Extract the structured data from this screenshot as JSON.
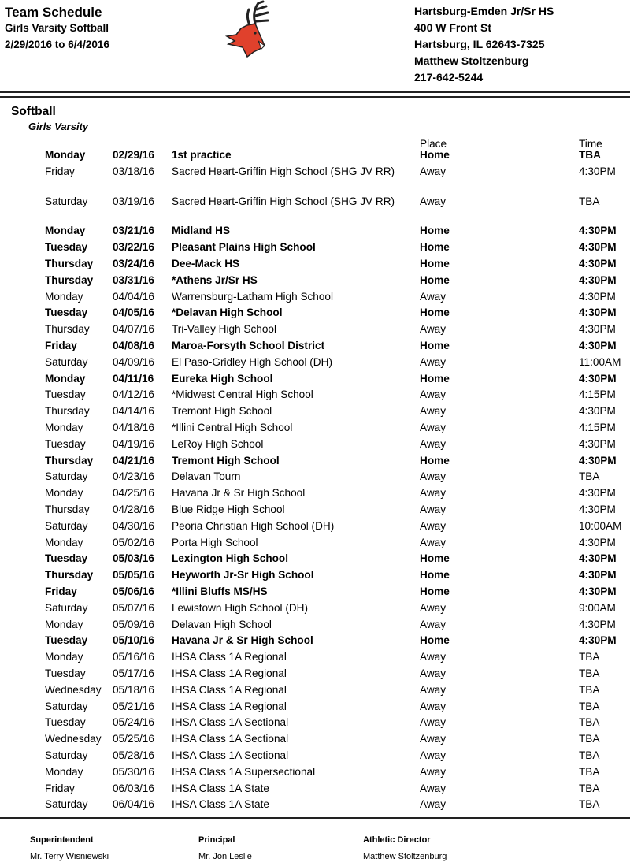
{
  "header": {
    "title": "Team Schedule",
    "subtitle": "Girls Varsity Softball",
    "date_range": "2/29/2016 to 6/4/2016",
    "school": "Hartsburg-Emden Jr/Sr HS",
    "address1": "400 W Front St",
    "address2": "Hartsburg, IL  62643-7325",
    "contact": "Matthew Stoltzenburg",
    "phone": "217-642-5244"
  },
  "colors": {
    "logo_red": "#e0412c"
  },
  "section": {
    "sport": "Softball",
    "level": "Girls Varsity",
    "place_header": "Place",
    "time_header": "Time"
  },
  "games": [
    {
      "day": "Monday",
      "date": "02/29/16",
      "opponent": "1st practice",
      "place": "Home",
      "time": "TBA"
    },
    {
      "day": "Friday",
      "date": "03/18/16",
      "opponent": "Sacred Heart-Griffin High School (SHG JV RR)",
      "place": "Away",
      "time": "4:30PM"
    },
    {
      "day": "Saturday",
      "date": "03/19/16",
      "opponent": "Sacred Heart-Griffin High School (SHG JV RR)",
      "place": "Away",
      "time": "TBA"
    },
    {
      "day": "Monday",
      "date": "03/21/16",
      "opponent": "Midland HS",
      "place": "Home",
      "time": "4:30PM"
    },
    {
      "day": "Tuesday",
      "date": "03/22/16",
      "opponent": "Pleasant Plains High School",
      "place": "Home",
      "time": "4:30PM"
    },
    {
      "day": "Thursday",
      "date": "03/24/16",
      "opponent": "Dee-Mack HS",
      "place": "Home",
      "time": "4:30PM"
    },
    {
      "day": "Thursday",
      "date": "03/31/16",
      "opponent": "*Athens Jr/Sr HS",
      "place": "Home",
      "time": "4:30PM"
    },
    {
      "day": "Monday",
      "date": "04/04/16",
      "opponent": "Warrensburg-Latham High School",
      "place": "Away",
      "time": "4:30PM"
    },
    {
      "day": "Tuesday",
      "date": "04/05/16",
      "opponent": "*Delavan High School",
      "place": "Home",
      "time": "4:30PM"
    },
    {
      "day": "Thursday",
      "date": "04/07/16",
      "opponent": "Tri-Valley High School",
      "place": "Away",
      "time": "4:30PM"
    },
    {
      "day": "Friday",
      "date": "04/08/16",
      "opponent": "Maroa-Forsyth School District",
      "place": "Home",
      "time": "4:30PM"
    },
    {
      "day": "Saturday",
      "date": "04/09/16",
      "opponent": "El Paso-Gridley High School (DH)",
      "place": "Away",
      "time": "11:00AM"
    },
    {
      "day": "Monday",
      "date": "04/11/16",
      "opponent": "Eureka High School",
      "place": "Home",
      "time": "4:30PM"
    },
    {
      "day": "Tuesday",
      "date": "04/12/16",
      "opponent": "*Midwest Central High School",
      "place": "Away",
      "time": "4:15PM"
    },
    {
      "day": "Thursday",
      "date": "04/14/16",
      "opponent": "Tremont High School",
      "place": "Away",
      "time": "4:30PM"
    },
    {
      "day": "Monday",
      "date": "04/18/16",
      "opponent": "*Illini Central High School",
      "place": "Away",
      "time": "4:15PM"
    },
    {
      "day": "Tuesday",
      "date": "04/19/16",
      "opponent": "LeRoy High School",
      "place": "Away",
      "time": "4:30PM"
    },
    {
      "day": "Thursday",
      "date": "04/21/16",
      "opponent": "Tremont High School",
      "place": "Home",
      "time": "4:30PM"
    },
    {
      "day": "Saturday",
      "date": "04/23/16",
      "opponent": "Delavan Tourn",
      "place": "Away",
      "time": "TBA"
    },
    {
      "day": "Monday",
      "date": "04/25/16",
      "opponent": "Havana Jr & Sr High School",
      "place": "Away",
      "time": "4:30PM"
    },
    {
      "day": "Thursday",
      "date": "04/28/16",
      "opponent": "Blue Ridge High School",
      "place": "Away",
      "time": "4:30PM"
    },
    {
      "day": "Saturday",
      "date": "04/30/16",
      "opponent": "Peoria Christian High School (DH)",
      "place": "Away",
      "time": "10:00AM"
    },
    {
      "day": "Monday",
      "date": "05/02/16",
      "opponent": "Porta High School",
      "place": "Away",
      "time": "4:30PM"
    },
    {
      "day": "Tuesday",
      "date": "05/03/16",
      "opponent": "Lexington High School",
      "place": "Home",
      "time": "4:30PM"
    },
    {
      "day": "Thursday",
      "date": "05/05/16",
      "opponent": "Heyworth Jr-Sr High School",
      "place": "Home",
      "time": "4:30PM"
    },
    {
      "day": "Friday",
      "date": "05/06/16",
      "opponent": "*Illini Bluffs MS/HS",
      "place": "Home",
      "time": "4:30PM"
    },
    {
      "day": "Saturday",
      "date": "05/07/16",
      "opponent": "Lewistown High School (DH)",
      "place": "Away",
      "time": "9:00AM"
    },
    {
      "day": "Monday",
      "date": "05/09/16",
      "opponent": "Delavan High School",
      "place": "Away",
      "time": "4:30PM"
    },
    {
      "day": "Tuesday",
      "date": "05/10/16",
      "opponent": "Havana Jr & Sr High School",
      "place": "Home",
      "time": "4:30PM"
    },
    {
      "day": "Monday",
      "date": "05/16/16",
      "opponent": "IHSA Class 1A Regional",
      "place": "Away",
      "time": "TBA"
    },
    {
      "day": "Tuesday",
      "date": "05/17/16",
      "opponent": "IHSA Class 1A Regional",
      "place": "Away",
      "time": "TBA"
    },
    {
      "day": "Wednesday",
      "date": "05/18/16",
      "opponent": "IHSA Class 1A Regional",
      "place": "Away",
      "time": "TBA"
    },
    {
      "day": "Saturday",
      "date": "05/21/16",
      "opponent": "IHSA Class 1A Regional",
      "place": "Away",
      "time": "TBA"
    },
    {
      "day": "Tuesday",
      "date": "05/24/16",
      "opponent": "IHSA Class 1A Sectional",
      "place": "Away",
      "time": "TBA"
    },
    {
      "day": "Wednesday",
      "date": "05/25/16",
      "opponent": "IHSA Class 1A Sectional",
      "place": "Away",
      "time": "TBA"
    },
    {
      "day": "Saturday",
      "date": "05/28/16",
      "opponent": "IHSA Class 1A Sectional",
      "place": "Away",
      "time": "TBA"
    },
    {
      "day": "Monday",
      "date": "05/30/16",
      "opponent": "IHSA Class 1A Supersectional",
      "place": "Away",
      "time": "TBA"
    },
    {
      "day": "Friday",
      "date": "06/03/16",
      "opponent": "IHSA Class 1A State",
      "place": "Away",
      "time": "TBA"
    },
    {
      "day": "Saturday",
      "date": "06/04/16",
      "opponent": "IHSA Class 1A State",
      "place": "Away",
      "time": "TBA"
    }
  ],
  "footer": [
    {
      "role": "Superintendent",
      "name": "Mr. Terry Wisniewski"
    },
    {
      "role": "Principal",
      "name": "Mr. Jon Leslie"
    },
    {
      "role": "Athletic Director",
      "name": "Matthew Stoltzenburg"
    }
  ]
}
